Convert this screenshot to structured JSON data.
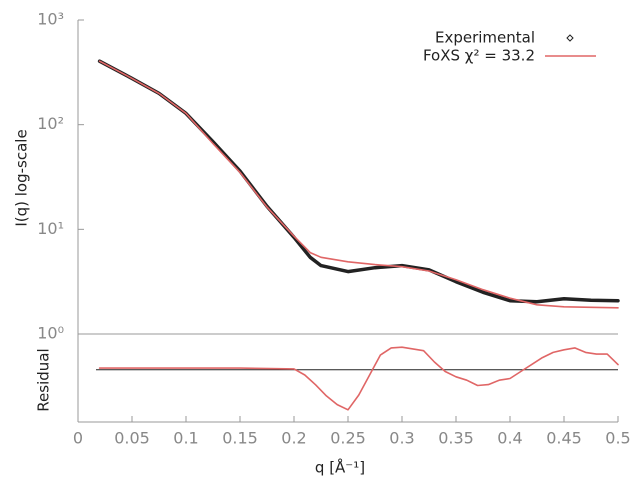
{
  "chart_data": [
    {
      "type": "line",
      "yscale": "log",
      "ylabel": "I(q) log-scale",
      "x": [
        0.02,
        0.05,
        0.075,
        0.1,
        0.125,
        0.15,
        0.175,
        0.2,
        0.215,
        0.225,
        0.25,
        0.275,
        0.3,
        0.325,
        0.35,
        0.375,
        0.4,
        0.425,
        0.45,
        0.475,
        0.5
      ],
      "series": [
        {
          "name": "Experimental",
          "color": "#222222",
          "marker": "point",
          "values": [
            404,
            277,
            199,
            128,
            68.7,
            36,
            16.6,
            8.4,
            5.4,
            4.5,
            3.95,
            4.3,
            4.5,
            4.1,
            3.16,
            2.5,
            2.08,
            2.03,
            2.17,
            2.1,
            2.08
          ]
        },
        {
          "name": "FoXS χ² = 33.2",
          "color": "#e06666",
          "marker": "line",
          "values": [
            404,
            277,
            199,
            128,
            66,
            35,
            16.3,
            8.6,
            6.0,
            5.4,
            4.9,
            4.6,
            4.4,
            4.0,
            3.3,
            2.65,
            2.2,
            1.9,
            1.82,
            1.8,
            1.78
          ]
        }
      ],
      "xlim": [
        0,
        0.5
      ],
      "ylim": [
        1,
        1000
      ],
      "yticks": [
        {
          "value": 1,
          "label": "10⁰"
        },
        {
          "value": 10,
          "label": "10¹"
        },
        {
          "value": 100,
          "label": "10²"
        },
        {
          "value": 1000,
          "label": "10³"
        }
      ],
      "legend": "upper right"
    },
    {
      "type": "line",
      "ylabel": "Residual",
      "xlabel": "q [Å⁻¹]",
      "x": [
        0.02,
        0.05,
        0.1,
        0.15,
        0.2,
        0.21,
        0.22,
        0.23,
        0.24,
        0.25,
        0.26,
        0.27,
        0.28,
        0.29,
        0.3,
        0.31,
        0.32,
        0.33,
        0.34,
        0.35,
        0.36,
        0.37,
        0.38,
        0.39,
        0.4,
        0.41,
        0.42,
        0.43,
        0.44,
        0.45,
        0.46,
        0.47,
        0.48,
        0.49,
        0.5
      ],
      "values": [
        0.1,
        0.1,
        0.1,
        0.1,
        0.05,
        -0.3,
        -0.86,
        -1.5,
        -2,
        -2.3,
        -1.45,
        -0.3,
        0.85,
        1.26,
        1.3,
        1.2,
        1.1,
        0.45,
        -0.1,
        -0.4,
        -0.6,
        -0.9,
        -0.85,
        -0.6,
        -0.5,
        -0.1,
        0.3,
        0.7,
        1.0,
        1.15,
        1.26,
        1.0,
        0.9,
        0.9,
        0.3
      ],
      "color": "#e06666",
      "hline": 0,
      "xlim": [
        0,
        0.5
      ],
      "ylim": [
        -3,
        2
      ],
      "xticks": [
        0,
        0.05,
        0.1,
        0.15,
        0.2,
        0.25,
        0.3,
        0.35,
        0.4,
        0.45,
        0.5
      ]
    }
  ]
}
